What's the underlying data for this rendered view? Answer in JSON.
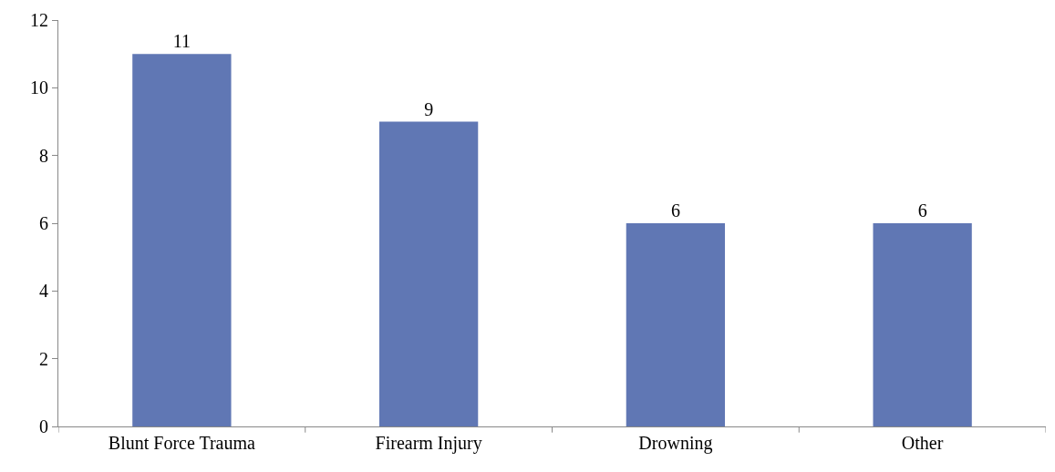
{
  "chart_data": {
    "type": "bar",
    "categories": [
      "Blunt Force Trauma",
      "Firearm Injury",
      "Drowning",
      "Other"
    ],
    "values": [
      11,
      9,
      6,
      6
    ],
    "color": "#6077b4",
    "ylim": [
      0,
      12
    ],
    "yticks": [
      0,
      2,
      4,
      6,
      8,
      10,
      12
    ],
    "data_labels": true
  }
}
